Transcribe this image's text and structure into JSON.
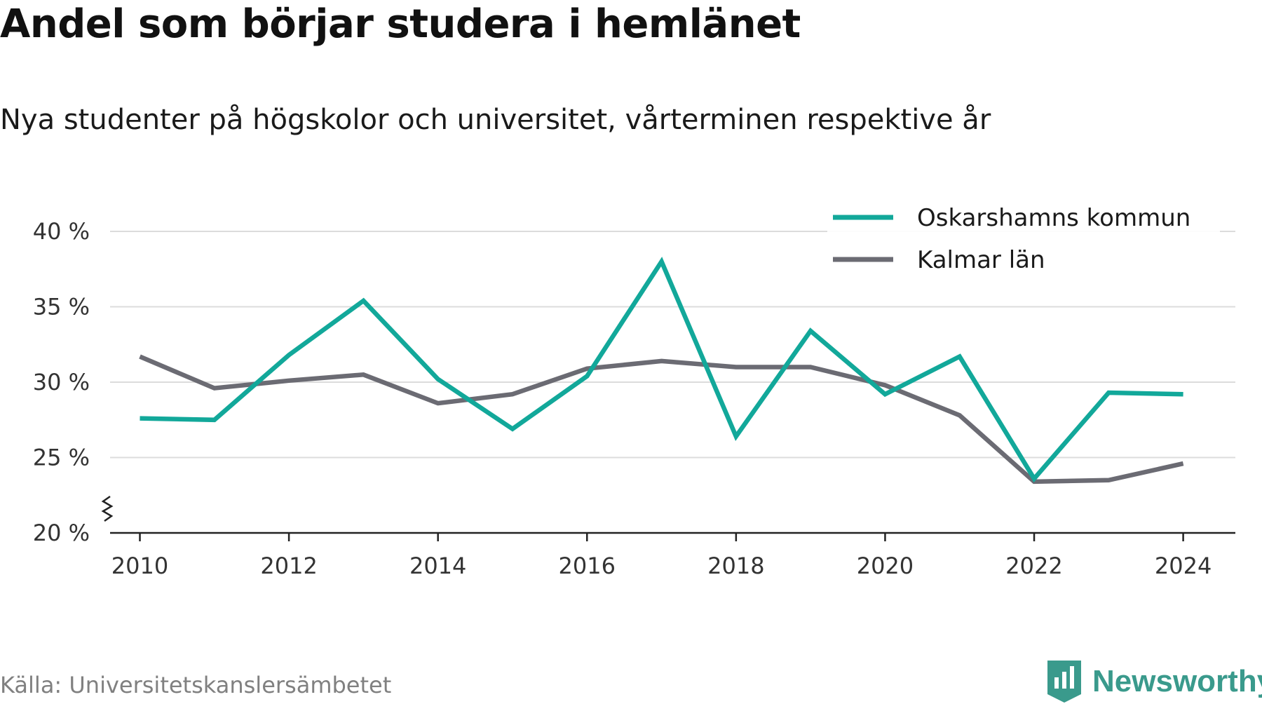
{
  "title": "Andel som börjar studera i hemlänet",
  "subtitle": "Nya studenter på högskolor och universitet, vårterminen respektive år",
  "source": "Källa: Universitetskanslersämbetet",
  "brand": {
    "name": "Newsworthy",
    "icon": "newsworthy-logo-icon",
    "color": "#3a9a8c"
  },
  "chart_data": {
    "type": "line",
    "x": [
      2010,
      2011,
      2012,
      2013,
      2014,
      2015,
      2016,
      2017,
      2018,
      2019,
      2020,
      2021,
      2022,
      2023,
      2024
    ],
    "xticks": [
      "2010",
      "2012",
      "2014",
      "2016",
      "2018",
      "2020",
      "2022",
      "2024"
    ],
    "xtick_values": [
      2010,
      2012,
      2014,
      2016,
      2018,
      2020,
      2022,
      2024
    ],
    "yticks": [
      "20 %",
      "25 %",
      "30 %",
      "35 %",
      "40 %"
    ],
    "ytick_values": [
      20,
      25,
      30,
      35,
      40
    ],
    "ylim": [
      20,
      40
    ],
    "xlim": [
      2009.6,
      2024.7
    ],
    "y_axis_break": true,
    "grid": true,
    "legend_position": "top-right",
    "series": [
      {
        "name": "Oskarshamns kommun",
        "color": "#12a89a",
        "values": [
          27.6,
          27.5,
          31.8,
          35.4,
          30.2,
          26.9,
          30.4,
          38.0,
          26.4,
          33.4,
          29.2,
          31.7,
          23.6,
          29.3,
          29.2
        ]
      },
      {
        "name": "Kalmar län",
        "color": "#6b6b73",
        "values": [
          31.7,
          29.6,
          30.1,
          30.5,
          28.6,
          29.2,
          30.9,
          31.4,
          31.0,
          31.0,
          29.8,
          27.8,
          23.4,
          23.5,
          24.6
        ]
      }
    ]
  }
}
